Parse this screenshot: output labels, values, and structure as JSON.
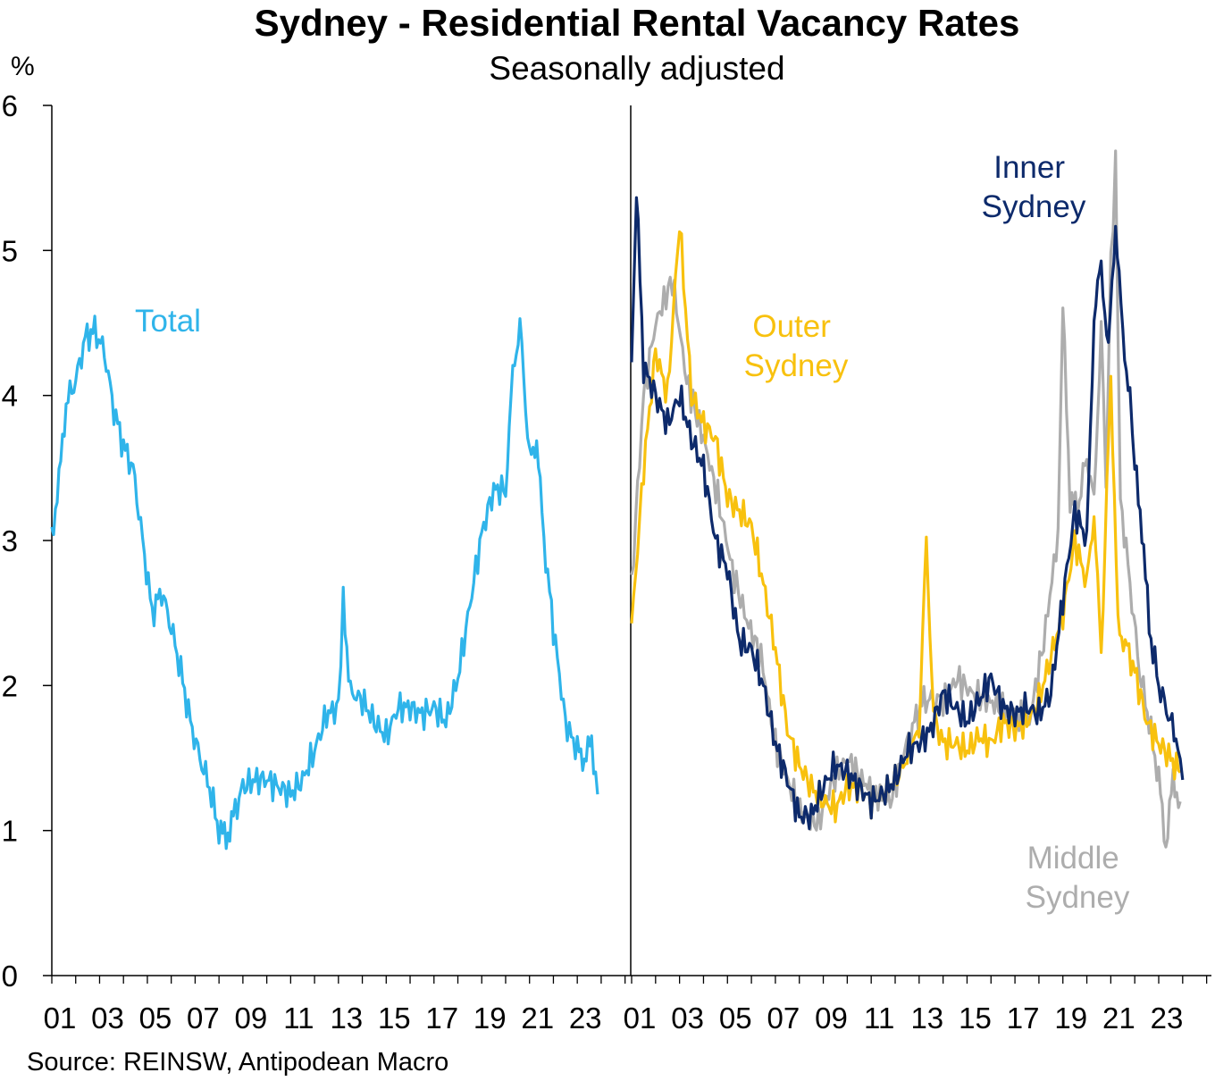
{
  "header": {
    "title": "Sydney - Residential Rental Vacancy Rates",
    "subtitle": "Seasonally adjusted",
    "unit": "%",
    "source": "Source: REINSW, Antipodean Macro"
  },
  "colors": {
    "total": "#2fb4ea",
    "inner": "#0d2a6b",
    "outer": "#f8c10e",
    "middle": "#adadad"
  },
  "chart_data": [
    {
      "type": "line",
      "ylim": [
        0,
        6
      ],
      "yticks": [
        0,
        1,
        2,
        3,
        4,
        5,
        6
      ],
      "xlim": [
        2001,
        2025.2
      ],
      "xtick_labels": [
        "01",
        "03",
        "05",
        "07",
        "09",
        "11",
        "13",
        "15",
        "17",
        "19",
        "21",
        "23"
      ],
      "series": [
        {
          "name": "Total",
          "color": "#2fb4ea",
          "x": [
            2001.0,
            2001.3,
            2001.6,
            2002.0,
            2002.4,
            2002.8,
            2003.2,
            2003.6,
            2004.0,
            2004.4,
            2004.8,
            2005.2,
            2005.6,
            2006.0,
            2006.4,
            2006.8,
            2007.2,
            2007.6,
            2008.0,
            2008.3,
            2008.6,
            2009.0,
            2009.5,
            2010.0,
            2010.5,
            2011.0,
            2011.5,
            2012.0,
            2012.5,
            2013.0,
            2013.2,
            2013.5,
            2014.0,
            2014.5,
            2015.0,
            2015.5,
            2016.0,
            2016.5,
            2017.0,
            2017.5,
            2018.0,
            2018.5,
            2019.0,
            2019.5,
            2020.0,
            2020.3,
            2020.6,
            2021.0,
            2021.3,
            2021.6,
            2022.0,
            2022.5,
            2023.0,
            2023.3,
            2023.6,
            2023.85
          ],
          "values": [
            3.05,
            3.4,
            3.95,
            4.1,
            4.4,
            4.45,
            4.3,
            3.9,
            3.65,
            3.5,
            3.0,
            2.5,
            2.65,
            2.4,
            2.1,
            1.75,
            1.5,
            1.3,
            1.0,
            0.95,
            1.1,
            1.3,
            1.35,
            1.35,
            1.3,
            1.25,
            1.35,
            1.55,
            1.8,
            1.85,
            2.6,
            1.95,
            1.9,
            1.75,
            1.65,
            1.85,
            1.85,
            1.8,
            1.85,
            1.75,
            2.05,
            2.55,
            3.05,
            3.35,
            3.35,
            4.15,
            4.5,
            3.55,
            3.7,
            3.0,
            2.4,
            1.75,
            1.55,
            1.5,
            1.6,
            1.25
          ]
        }
      ]
    },
    {
      "type": "line",
      "ylim": [
        0,
        6
      ],
      "xlim": [
        2001,
        2025.2
      ],
      "xtick_labels": [
        "01",
        "03",
        "05",
        "07",
        "09",
        "11",
        "13",
        "15",
        "17",
        "19",
        "21",
        "23"
      ],
      "series": [
        {
          "name": "Middle Sydney",
          "color": "#adadad",
          "x": [
            2001.0,
            2001.5,
            2002.0,
            2002.7,
            2003.3,
            2004.0,
            2004.6,
            2005.2,
            2005.8,
            2006.4,
            2007.0,
            2007.6,
            2008.2,
            2008.8,
            2009.4,
            2010.0,
            2010.6,
            2011.2,
            2011.8,
            2012.4,
            2012.8,
            2013.2,
            2014.0,
            2014.6,
            2015.2,
            2015.8,
            2016.4,
            2017.0,
            2017.6,
            2018.2,
            2018.8,
            2019.0,
            2019.3,
            2019.6,
            2020.0,
            2020.3,
            2020.6,
            2020.8,
            2021.0,
            2021.2,
            2021.4,
            2021.8,
            2022.2,
            2022.6,
            2023.0,
            2023.3,
            2023.6,
            2023.9
          ],
          "values": [
            2.7,
            4.0,
            4.5,
            4.8,
            4.1,
            3.7,
            3.3,
            2.8,
            2.45,
            2.2,
            1.6,
            1.3,
            1.1,
            1.05,
            1.35,
            1.5,
            1.35,
            1.25,
            1.2,
            1.55,
            1.75,
            1.9,
            1.9,
            2.05,
            1.95,
            1.9,
            1.85,
            1.8,
            1.75,
            2.3,
            3.05,
            4.6,
            3.3,
            3.2,
            3.6,
            3.25,
            4.5,
            3.4,
            4.9,
            5.6,
            3.3,
            2.7,
            2.1,
            1.75,
            1.35,
            0.9,
            1.35,
            1.2
          ]
        },
        {
          "name": "Outer Sydney",
          "color": "#f8c10e",
          "x": [
            2001.0,
            2001.5,
            2002.0,
            2002.5,
            2003.0,
            2003.5,
            2004.0,
            2004.5,
            2005.0,
            2005.5,
            2006.0,
            2006.5,
            2007.0,
            2007.5,
            2008.0,
            2008.5,
            2009.0,
            2009.5,
            2010.0,
            2010.5,
            2011.0,
            2011.5,
            2012.0,
            2012.5,
            2013.0,
            2013.3,
            2013.6,
            2014.0,
            2014.5,
            2015.0,
            2015.5,
            2016.0,
            2016.5,
            2017.0,
            2017.5,
            2018.0,
            2018.5,
            2019.0,
            2019.5,
            2020.0,
            2020.3,
            2020.6,
            2021.0,
            2021.3,
            2021.6,
            2022.0,
            2022.5,
            2023.0,
            2023.5,
            2023.9
          ],
          "values": [
            2.4,
            3.5,
            4.3,
            4.0,
            5.2,
            4.0,
            3.8,
            3.7,
            3.3,
            3.2,
            3.1,
            2.7,
            2.25,
            1.7,
            1.45,
            1.3,
            1.2,
            1.15,
            1.3,
            1.3,
            1.2,
            1.25,
            1.35,
            1.5,
            1.7,
            3.0,
            1.8,
            1.6,
            1.6,
            1.55,
            1.65,
            1.6,
            1.75,
            1.7,
            1.75,
            1.9,
            2.2,
            2.5,
            3.0,
            2.7,
            3.2,
            2.2,
            4.15,
            2.4,
            2.3,
            2.1,
            1.75,
            1.6,
            1.5,
            1.4
          ]
        },
        {
          "name": "Inner Sydney",
          "color": "#0d2a6b",
          "x": [
            2001.0,
            2001.2,
            2001.5,
            2002.0,
            2002.5,
            2003.0,
            2003.5,
            2004.0,
            2004.5,
            2005.0,
            2005.5,
            2006.0,
            2006.5,
            2007.0,
            2007.5,
            2008.0,
            2008.5,
            2009.0,
            2009.5,
            2010.0,
            2010.5,
            2011.0,
            2011.5,
            2012.0,
            2012.5,
            2013.0,
            2013.5,
            2014.0,
            2014.5,
            2015.0,
            2015.5,
            2016.0,
            2016.5,
            2017.0,
            2017.5,
            2018.0,
            2018.5,
            2019.0,
            2019.5,
            2020.0,
            2020.3,
            2020.6,
            2020.9,
            2021.2,
            2021.5,
            2021.8,
            2022.0,
            2022.3,
            2022.6,
            2023.0,
            2023.4,
            2023.8,
            2024.0
          ],
          "values": [
            4.2,
            5.4,
            4.2,
            4.0,
            3.8,
            4.0,
            3.7,
            3.5,
            3.0,
            2.8,
            2.3,
            2.25,
            2.0,
            1.6,
            1.35,
            1.1,
            1.1,
            1.3,
            1.45,
            1.4,
            1.3,
            1.2,
            1.25,
            1.35,
            1.55,
            1.6,
            1.7,
            1.95,
            1.85,
            1.75,
            1.9,
            2.05,
            1.85,
            1.8,
            1.85,
            1.8,
            1.95,
            2.6,
            3.2,
            3.0,
            4.55,
            4.9,
            4.3,
            5.2,
            4.4,
            4.0,
            3.5,
            3.1,
            2.4,
            2.0,
            1.8,
            1.6,
            1.35
          ]
        }
      ]
    }
  ],
  "annotations": {
    "total": "Total",
    "inner": [
      "Inner",
      "Sydney"
    ],
    "outer": [
      "Outer",
      "Sydney"
    ],
    "middle": [
      "Middle",
      "Sydney"
    ]
  }
}
